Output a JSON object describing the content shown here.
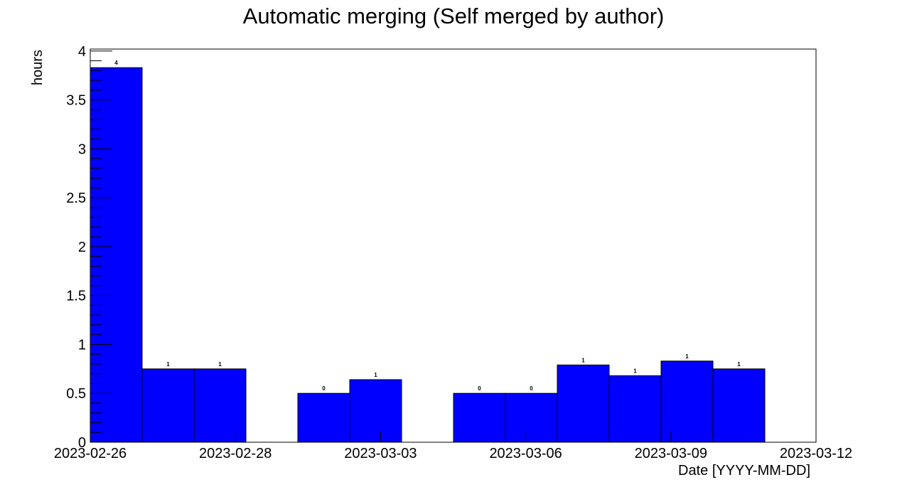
{
  "chart_data": {
    "type": "bar",
    "title": "Automatic merging (Self merged by author)",
    "xlabel": "Date [YYYY-MM-DD]",
    "ylabel": "hours",
    "x_tick_labels": [
      "2023-02-26",
      "2023-02-28",
      "2023-03-03",
      "2023-03-06",
      "2023-03-09",
      "2023-03-12"
    ],
    "y_tick_labels": [
      "0",
      "0.5",
      "1",
      "1.5",
      "2",
      "2.5",
      "3",
      "3.5",
      "4"
    ],
    "ylim": [
      0,
      4.02
    ],
    "grid": false,
    "bar_color": "#0000ff",
    "bars": [
      {
        "date": "2023-02-26",
        "value": 3.83,
        "label": "4"
      },
      {
        "date": "2023-02-27",
        "value": 0.75,
        "label": "1"
      },
      {
        "date": "2023-02-28",
        "value": 0.75,
        "label": "1"
      },
      {
        "date": "2023-03-01",
        "value": null,
        "label": ""
      },
      {
        "date": "2023-03-02",
        "value": 0.5,
        "label": "0"
      },
      {
        "date": "2023-03-03",
        "value": 0.64,
        "label": "1"
      },
      {
        "date": "2023-03-04",
        "value": null,
        "label": ""
      },
      {
        "date": "2023-03-05",
        "value": 0.5,
        "label": "0"
      },
      {
        "date": "2023-03-06",
        "value": 0.5,
        "label": "0"
      },
      {
        "date": "2023-03-07",
        "value": 0.79,
        "label": "1"
      },
      {
        "date": "2023-03-08",
        "value": 0.68,
        "label": "1"
      },
      {
        "date": "2023-03-09",
        "value": 0.83,
        "label": "1"
      },
      {
        "date": "2023-03-10",
        "value": 0.75,
        "label": "1"
      },
      {
        "date": "2023-03-11",
        "value": null,
        "label": ""
      }
    ]
  }
}
